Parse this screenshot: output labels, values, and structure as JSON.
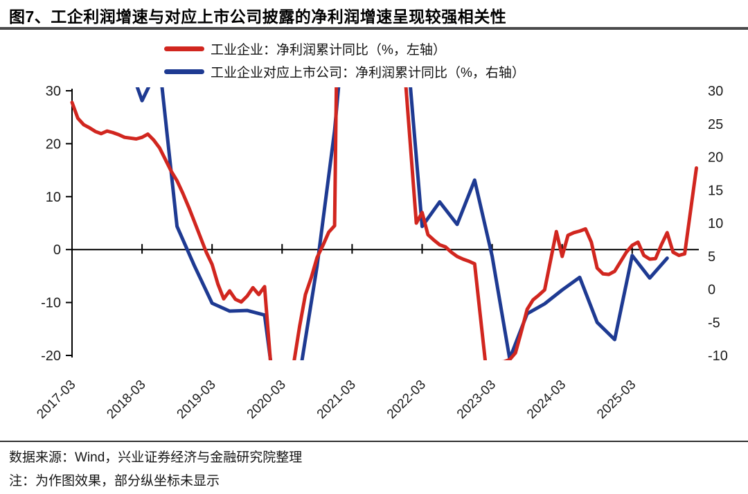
{
  "page": {
    "title": "图7、工企利润增速与对应上市公司披露的净利润增速呈现较强相关性"
  },
  "legend": {
    "items": [
      {
        "label": "工业企业：净利润累计同比（%，左轴）",
        "color": "#d1261f"
      },
      {
        "label": "工业企业对应上市公司：净利润累计同比（%，右轴）",
        "color": "#1e3a92"
      }
    ]
  },
  "footer": {
    "source": "数据来源：Wind，兴业证券经济与金融研究院整理",
    "note": "注：为作图效果，部分纵坐标未显示"
  },
  "chart_data": {
    "type": "line",
    "title": "工企利润增速与对应上市公司披露的净利润增速呈现较强相关性",
    "x_tick_labels": [
      "2017-03",
      "2018-03",
      "2019-03",
      "2020-03",
      "2021-03",
      "2022-03",
      "2023-03",
      "2024-03",
      "2025-03"
    ],
    "left_axis": {
      "ticks": [
        30,
        20,
        10,
        0,
        -10,
        -20
      ],
      "range": [
        -20,
        30
      ],
      "unit": "%"
    },
    "right_axis": {
      "ticks": [
        30,
        25,
        20,
        15,
        10,
        5,
        0,
        -5,
        -10
      ],
      "range": [
        -10,
        30
      ],
      "unit": "%"
    },
    "grid": "zero-line-only",
    "legend_position": "top",
    "series": [
      {
        "name": "工业企业：净利润累计同比",
        "axis": "left",
        "unit": "%",
        "color": "#d1261f",
        "frequency": "monthly",
        "points": [
          [
            "2017-03",
            27.8
          ],
          [
            "2017-04",
            24.8
          ],
          [
            "2017-05",
            23.6
          ],
          [
            "2017-06",
            23.0
          ],
          [
            "2017-07",
            22.3
          ],
          [
            "2017-08",
            21.9
          ],
          [
            "2017-09",
            22.4
          ],
          [
            "2017-10",
            22.1
          ],
          [
            "2017-11",
            21.7
          ],
          [
            "2017-12",
            21.2
          ],
          [
            "2018-02",
            20.9
          ],
          [
            "2018-03",
            21.2
          ],
          [
            "2018-04",
            21.8
          ],
          [
            "2018-05",
            20.7
          ],
          [
            "2018-06",
            19.2
          ],
          [
            "2018-07",
            17.0
          ],
          [
            "2018-08",
            14.8
          ],
          [
            "2018-09",
            13.0
          ],
          [
            "2018-10",
            10.6
          ],
          [
            "2018-11",
            8.0
          ],
          [
            "2018-12",
            5.2
          ],
          [
            "2019-02",
            -0.5
          ],
          [
            "2019-03",
            -2.8
          ],
          [
            "2019-04",
            -6.5
          ],
          [
            "2019-05",
            -9.3
          ],
          [
            "2019-06",
            -7.8
          ],
          [
            "2019-07",
            -9.4
          ],
          [
            "2019-08",
            -9.9
          ],
          [
            "2019-09",
            -8.8
          ],
          [
            "2019-10",
            -7.2
          ],
          [
            "2019-11",
            -8.5
          ],
          [
            "2019-12",
            -7.0
          ],
          [
            "2020-02",
            -35.0
          ],
          [
            "2020-03",
            -33.0
          ],
          [
            "2020-04",
            -27.0
          ],
          [
            "2020-05",
            -21.5
          ],
          [
            "2020-06",
            -14.5
          ],
          [
            "2020-07",
            -8.5
          ],
          [
            "2020-08",
            -5.3
          ],
          [
            "2020-09",
            -1.5
          ],
          [
            "2020-10",
            0.8
          ],
          [
            "2020-11",
            3.3
          ],
          [
            "2020-12",
            4.5
          ],
          [
            "2021-02",
            179.0
          ],
          [
            "2021-03",
            137.0
          ],
          [
            "2021-04",
            106.0
          ],
          [
            "2021-05",
            83.0
          ],
          [
            "2021-06",
            67.0
          ],
          [
            "2021-07",
            57.0
          ],
          [
            "2021-08",
            49.0
          ],
          [
            "2021-09",
            45.0
          ],
          [
            "2021-10",
            42.0
          ],
          [
            "2021-11",
            38.0
          ],
          [
            "2021-12",
            34.0
          ],
          [
            "2022-02",
            5.0
          ],
          [
            "2022-03",
            7.0
          ],
          [
            "2022-04",
            2.8
          ],
          [
            "2022-05",
            1.8
          ],
          [
            "2022-06",
            0.9
          ],
          [
            "2022-07",
            0.5
          ],
          [
            "2022-08",
            -0.5
          ],
          [
            "2022-09",
            -1.3
          ],
          [
            "2022-10",
            -1.8
          ],
          [
            "2022-11",
            -2.2
          ],
          [
            "2022-12",
            -2.7
          ],
          [
            "2023-02",
            -22.9
          ],
          [
            "2023-03",
            -21.9
          ],
          [
            "2023-04",
            -21.3
          ],
          [
            "2023-05",
            -21.2
          ],
          [
            "2023-06",
            -20.8
          ],
          [
            "2023-07",
            -19.5
          ],
          [
            "2023-08",
            -15.5
          ],
          [
            "2023-09",
            -11.3
          ],
          [
            "2023-10",
            -9.5
          ],
          [
            "2023-11",
            -8.6
          ],
          [
            "2023-12",
            -7.6
          ],
          [
            "2024-02",
            3.4
          ],
          [
            "2024-03",
            -1.3
          ],
          [
            "2024-04",
            2.7
          ],
          [
            "2024-05",
            3.2
          ],
          [
            "2024-06",
            3.5
          ],
          [
            "2024-07",
            3.9
          ],
          [
            "2024-08",
            1.4
          ],
          [
            "2024-09",
            -3.5
          ],
          [
            "2024-10",
            -4.6
          ],
          [
            "2024-11",
            -4.7
          ],
          [
            "2024-12",
            -4.1
          ],
          [
            "2025-02",
            -0.5
          ],
          [
            "2025-03",
            0.8
          ],
          [
            "2025-04",
            1.4
          ],
          [
            "2025-05",
            -1.1
          ],
          [
            "2025-06",
            -1.8
          ],
          [
            "2025-07",
            -1.7
          ],
          [
            "2025-08",
            0.9
          ],
          [
            "2025-09",
            3.2
          ],
          [
            "2025-10",
            -0.5
          ],
          [
            "2025-11",
            -1.1
          ],
          [
            "2025-12",
            -0.8
          ],
          [
            "2026-02",
            15.4
          ]
        ]
      },
      {
        "name": "工业企业对应上市公司：净利润累计同比",
        "axis": "right",
        "unit": "%",
        "color": "#1e3a92",
        "frequency": "quarterly",
        "points": [
          [
            "2017-03",
            55.0
          ],
          [
            "2017-06",
            45.0
          ],
          [
            "2017-09",
            40.0
          ],
          [
            "2017-12",
            36.0
          ],
          [
            "2018-03",
            28.5
          ],
          [
            "2018-06",
            34.0
          ],
          [
            "2018-09",
            9.5
          ],
          [
            "2018-12",
            3.5
          ],
          [
            "2019-03",
            -2.1
          ],
          [
            "2019-06",
            -3.3
          ],
          [
            "2019-09",
            -3.2
          ],
          [
            "2019-12",
            -3.9
          ],
          [
            "2020-03",
            -24.0
          ],
          [
            "2020-06",
            -13.0
          ],
          [
            "2020-09",
            3.5
          ],
          [
            "2020-12",
            24.0
          ],
          [
            "2021-03",
            53.0
          ],
          [
            "2021-06",
            46.0
          ],
          [
            "2021-09",
            43.0
          ],
          [
            "2021-12",
            41.0
          ],
          [
            "2022-03",
            9.5
          ],
          [
            "2022-06",
            13.2
          ],
          [
            "2022-09",
            9.8
          ],
          [
            "2022-12",
            16.5
          ],
          [
            "2023-03",
            5.0
          ],
          [
            "2023-06",
            -10.5
          ],
          [
            "2023-09",
            -3.7
          ],
          [
            "2023-12",
            -2.2
          ],
          [
            "2024-03",
            -0.1
          ],
          [
            "2024-06",
            1.8
          ],
          [
            "2024-09",
            -5.0
          ],
          [
            "2024-12",
            -7.6
          ],
          [
            "2025-03",
            5.1
          ],
          [
            "2025-06",
            1.7
          ],
          [
            "2025-09",
            4.7
          ]
        ]
      }
    ]
  }
}
